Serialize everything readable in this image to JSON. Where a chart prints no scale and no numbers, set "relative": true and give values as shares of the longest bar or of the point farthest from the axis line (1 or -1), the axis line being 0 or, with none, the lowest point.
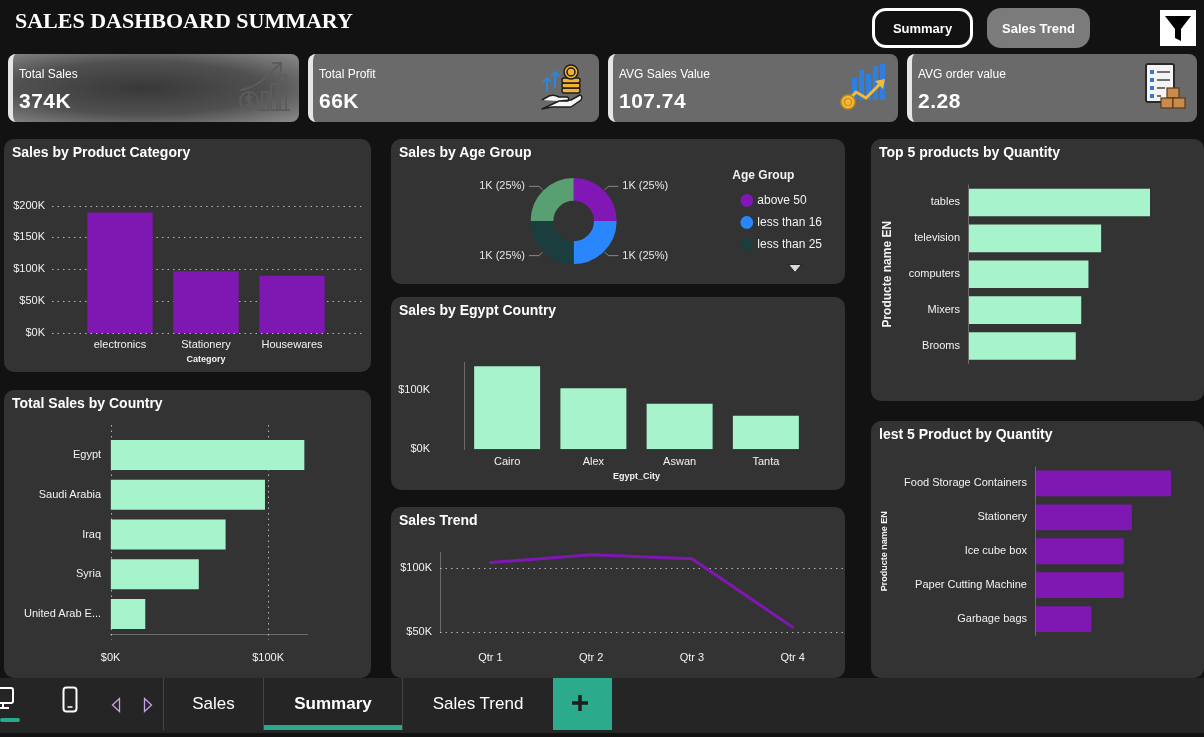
{
  "chart_data": [
    {
      "type": "other",
      "title": "SALES DASHBOARD SUMMARY",
      "annotations": [
        "Summary",
        "Sales Trend"
      ]
    },
    {
      "type": "other",
      "title": "Total Sales",
      "annotations": [
        "374K"
      ]
    },
    {
      "type": "other",
      "title": "Total Profit",
      "annotations": [
        "66K"
      ]
    },
    {
      "type": "other",
      "title": "AVG Sales Value",
      "annotations": [
        "107.74"
      ]
    },
    {
      "type": "other",
      "title": "AVG order value",
      "annotations": [
        "2.28"
      ]
    },
    {
      "type": "bar",
      "title": "Sales by Product Category",
      "categories": [
        "electronics",
        "Stationery",
        "Housewares"
      ],
      "values": [
        189000,
        97000,
        90000
      ],
      "color": "#7f17b2",
      "xlabel": "Category",
      "ylim": [
        0,
        200000
      ],
      "yticks": [
        {
          "value": 0,
          "label": "$0K"
        },
        {
          "value": 50000,
          "label": "$50K"
        },
        {
          "value": 100000,
          "label": "$100K"
        },
        {
          "value": 150000,
          "label": "$150K"
        },
        {
          "value": 200000,
          "label": "$200K"
        }
      ],
      "grid": "y"
    },
    {
      "type": "donut",
      "title": "Sales by Age Group",
      "categories": [
        "above 50",
        "less than 16",
        "less than 25",
        null
      ],
      "values": [
        25,
        25,
        25,
        25
      ],
      "colors": [
        "#8118b5",
        "#2a86fc",
        "#1c3d3d",
        "#58a072"
      ],
      "value_labels": [
        "1K (25%)",
        "1K (25%)",
        "1K (25%)",
        "1K (25%)"
      ],
      "legend": "right",
      "legend_title": "Age Group"
    },
    {
      "type": "bar",
      "orientation": "horizontal",
      "relative": true,
      "title": "Top 5 products by Quantity",
      "categories": [
        "tables",
        "television",
        "computers",
        "Mixers",
        "Brooms"
      ],
      "values": [
        1,
        0.73,
        0.66,
        0.62,
        0.59
      ],
      "color": "#a7f3cc",
      "ylabel": "Producte name EN"
    },
    {
      "type": "bar",
      "title": "Sales by Egypt Country",
      "categories": [
        "Cairo",
        "Alex",
        "Aswan",
        "Tanta"
      ],
      "values": [
        139000,
        102000,
        76000,
        56000
      ],
      "color": "#a7f3cc",
      "xlabel": "Egypt_City",
      "ylim": [
        0,
        145000
      ],
      "yticks": [
        {
          "value": 0,
          "label": "$0K"
        },
        {
          "value": 100000,
          "label": "$100K"
        }
      ]
    },
    {
      "type": "bar",
      "orientation": "horizontal",
      "title": "Total Sales by Country",
      "categories": [
        "Egypt",
        "Saudi Arabia",
        "Iraq",
        "Syria",
        "United Arab E..."
      ],
      "values": [
        123000,
        98000,
        73000,
        56000,
        22000
      ],
      "color": "#a7f3cc",
      "xlim": [
        0,
        125000
      ],
      "xticks": [
        {
          "value": 0,
          "label": "$0K"
        },
        {
          "value": 100000,
          "label": "$100K"
        }
      ],
      "grid": "x"
    },
    {
      "type": "bar",
      "orientation": "horizontal",
      "relative": true,
      "title": "lest 5 Product by Quantity",
      "categories": [
        "Food Storage Containers",
        "Stationery",
        "Ice cube box",
        "Paper Cutting Machine",
        "Garbage bags"
      ],
      "values": [
        1,
        0.71,
        0.65,
        0.65,
        0.41
      ],
      "color": "#7f17b2",
      "ylabel": "Producte name EN"
    },
    {
      "type": "line",
      "title": "Sales Trend",
      "categories": [
        "Qtr 1",
        "Qtr 2",
        "Qtr 3",
        "Qtr 4"
      ],
      "values": [
        104000,
        110000,
        107000,
        54000
      ],
      "color": "#7f17b2",
      "ylim": [
        50000,
        112000
      ],
      "yticks": [
        {
          "value": 50000,
          "label": "$50K"
        },
        {
          "value": 100000,
          "label": "$100K"
        }
      ],
      "grid": "y"
    },
    {
      "type": "other",
      "annotations": [
        "Sales",
        "Summary",
        "Sales Trend"
      ]
    }
  ]
}
